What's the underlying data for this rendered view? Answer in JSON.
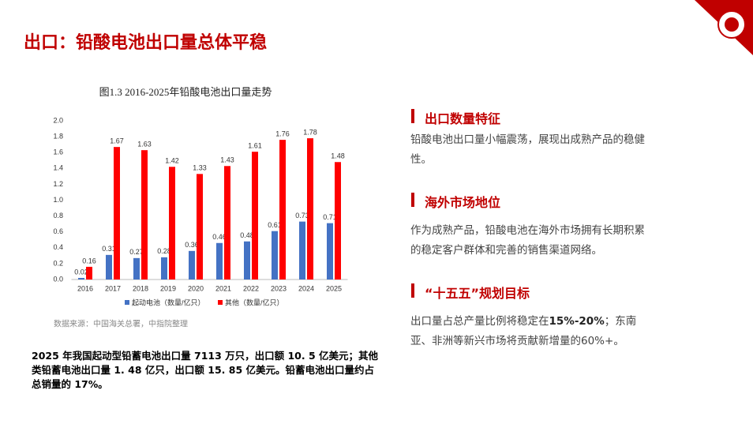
{
  "header": {
    "title": "出口：铅酸电池出口量总体平稳"
  },
  "chart_data": {
    "type": "bar",
    "title": "图1.3 2016-2025年铅酸电池出口量走势",
    "categories": [
      "2016",
      "2017",
      "2018",
      "2019",
      "2020",
      "2021",
      "2022",
      "2023",
      "2024",
      "2025"
    ],
    "series": [
      {
        "name": "起动电池（数量/亿只）",
        "color": "#4472c4",
        "values": [
          0.02,
          0.31,
          0.27,
          0.28,
          0.36,
          0.46,
          0.48,
          0.61,
          0.73,
          0.71
        ]
      },
      {
        "name": "其他（数量/亿只）",
        "color": "#ff0000",
        "values": [
          0.16,
          1.67,
          1.63,
          1.42,
          1.33,
          1.43,
          1.61,
          1.76,
          1.78,
          1.48
        ]
      }
    ],
    "ylim": [
      0,
      2
    ],
    "yticks": [
      {
        "value": 0,
        "label": "0.0"
      },
      0.2,
      0.4,
      0.6,
      0.8,
      {
        "value": 1,
        "label": "1.0"
      },
      1.2,
      1.4,
      1.6,
      1.8,
      {
        "value": 2,
        "label": "2.0"
      }
    ],
    "grid": false,
    "legend": "bottom"
  },
  "source": "数据来源：中国海关总署，中指院整理",
  "summary": "2025 年我国起动型铅蓄电池出口量 7113 万只，出口额 10. 5 亿美元；其他类铅蓄电池出口量 1. 48 亿只，出口额 15. 85 亿美元。铅蓄电池出口量约占总销量的 17%。",
  "sections": [
    {
      "heading": "出口数量特征",
      "body": [
        "铅酸电池出口量小幅震荡，展现出成熟产品的稳健性。"
      ]
    },
    {
      "heading": "海外市场地位",
      "body": [
        "作为成熟产品，铅酸电池在海外市场拥有长期积累的稳定客户群体和完善的销售渠道网络。"
      ]
    },
    {
      "heading": "“十五五”规划目标",
      "body": [
        "出口量占总产量比例将稳定在",
        "15%-20%",
        "；东南亚、非洲等新兴市场将贡献新增量的60%+。"
      ]
    }
  ]
}
